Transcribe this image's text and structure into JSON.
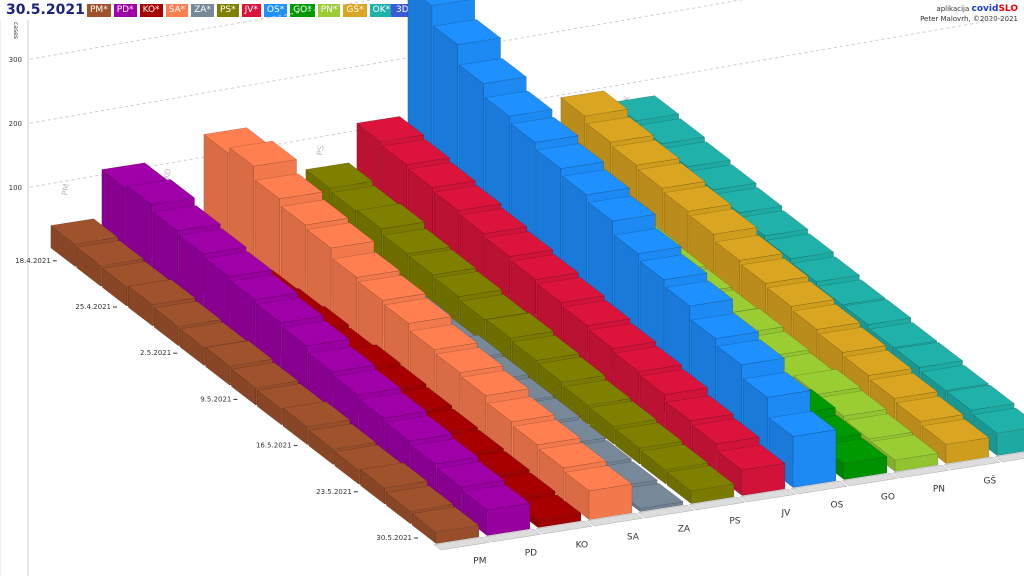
{
  "title": "30.5.2021",
  "button_3d": "3D",
  "credit": {
    "prefix": "aplikacija",
    "brand1": "covid",
    "brand2": "SLO",
    "author": "Peter Malovrh, ©2020-2021"
  },
  "chart_data": {
    "type": "bar3d",
    "ylabel": "cases",
    "yticks": [
      100,
      200,
      300
    ],
    "date_ticks": [
      "18.4.2021",
      "25.4.2021",
      "2.5.2021",
      "9.5.2021",
      "16.5.2021",
      "23.5.2021",
      "30.5.2021"
    ],
    "dates_step_days": 3,
    "series": [
      {
        "name": "PM",
        "legend": "PM*",
        "color": "#a0522d",
        "values": [
          35,
          32,
          30,
          33,
          30,
          28,
          30,
          27,
          25,
          28,
          24,
          22,
          25,
          20,
          18
        ]
      },
      {
        "name": "PD",
        "legend": "PD*",
        "color": "#a000a8",
        "values": [
          110,
          115,
          105,
          100,
          95,
          90,
          85,
          80,
          70,
          65,
          60,
          55,
          50,
          45,
          40
        ]
      },
      {
        "name": "KO",
        "legend": "KO*",
        "color": "#a80000",
        "values": [
          15,
          18,
          20,
          22,
          25,
          28,
          25,
          30,
          28,
          25,
          22,
          20,
          18,
          15,
          12
        ]
      },
      {
        "name": "SA",
        "legend": "SA*",
        "color": "#ff7f50",
        "values": [
          140,
          150,
          130,
          120,
          115,
          100,
          95,
          90,
          80,
          75,
          70,
          60,
          55,
          50,
          45
        ]
      },
      {
        "name": "ZA",
        "legend": "ZA*",
        "color": "#778899",
        "values": [
          10,
          12,
          15,
          18,
          20,
          18,
          15,
          20,
          18,
          15,
          14,
          12,
          10,
          8,
          5
        ]
      },
      {
        "name": "PS",
        "legend": "PS*",
        "color": "#808000",
        "values": [
          60,
          55,
          58,
          50,
          48,
          45,
          40,
          42,
          38,
          35,
          30,
          28,
          25,
          22,
          20
        ]
      },
      {
        "name": "JV",
        "legend": "JV*",
        "color": "#dc143c",
        "values": [
          120,
          115,
          110,
          105,
          100,
          95,
          90,
          85,
          80,
          75,
          70,
          65,
          55,
          50,
          40
        ]
      },
      {
        "name": "OS",
        "legend": "OS*",
        "color": "#1e90ff",
        "values": [
          320,
          290,
          260,
          240,
          230,
          220,
          210,
          200,
          180,
          170,
          160,
          140,
          130,
          110,
          80
        ]
      },
      {
        "name": "GO",
        "legend": "GO*",
        "color": "#009900",
        "values": [
          20,
          25,
          30,
          28,
          25,
          22,
          20,
          25,
          30,
          28,
          25,
          35,
          40,
          30,
          25
        ]
      },
      {
        "name": "PN",
        "legend": "PN*",
        "color": "#9acd32",
        "values": [
          45,
          40,
          42,
          38,
          35,
          32,
          30,
          28,
          30,
          25,
          22,
          28,
          25,
          20,
          18
        ]
      },
      {
        "name": "GŠ",
        "legend": "GŠ*",
        "color": "#daa520",
        "values": [
          110,
          100,
          95,
          90,
          85,
          80,
          70,
          65,
          60,
          55,
          50,
          45,
          40,
          35,
          30
        ]
      },
      {
        "name": "OK",
        "legend": "OK*",
        "color": "#20b2aa",
        "values": [
          90,
          85,
          80,
          75,
          70,
          65,
          60,
          55,
          50,
          50,
          45,
          45,
          40,
          40,
          35
        ]
      }
    ]
  }
}
